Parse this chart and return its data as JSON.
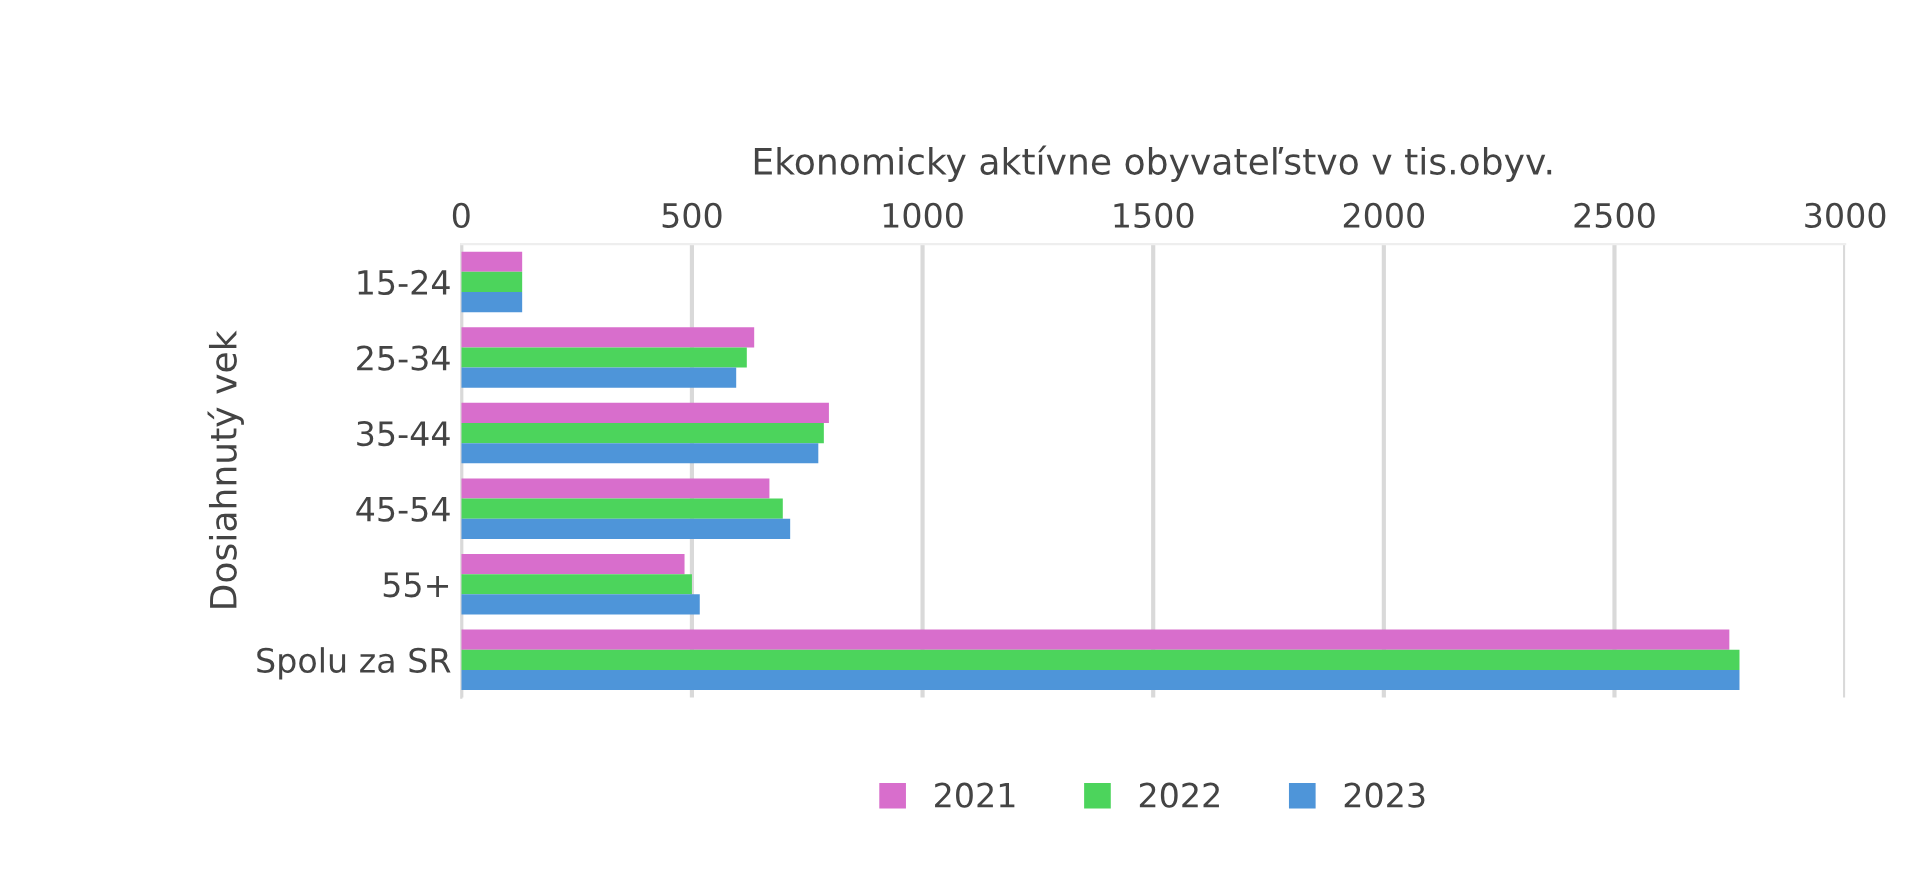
{
  "chart_data": {
    "type": "bar",
    "orientation": "horizontal",
    "xlabel": "Ekonomicky aktívne obyvateľstvo v tis.obyv.",
    "ylabel": "Dosiahnutý vek",
    "categories": [
      "15-24",
      "25-34",
      "35-44",
      "45-54",
      "55+",
      "Spolu za SR"
    ],
    "series": [
      {
        "name": "2021",
        "color": "#d86ecc",
        "values": [
          132,
          635,
          797,
          668,
          484,
          2749
        ]
      },
      {
        "name": "2022",
        "color": "#4cd45c",
        "values": [
          132,
          619,
          786,
          697,
          500,
          2771
        ]
      },
      {
        "name": "2023",
        "color": "#4e95d9",
        "values": [
          132,
          596,
          774,
          713,
          517,
          2771
        ]
      }
    ],
    "xlim": [
      0,
      3000
    ],
    "xticks": [
      0,
      500,
      1000,
      1500,
      2000,
      2500,
      3000
    ],
    "grid": "x",
    "legend": "bottom"
  }
}
